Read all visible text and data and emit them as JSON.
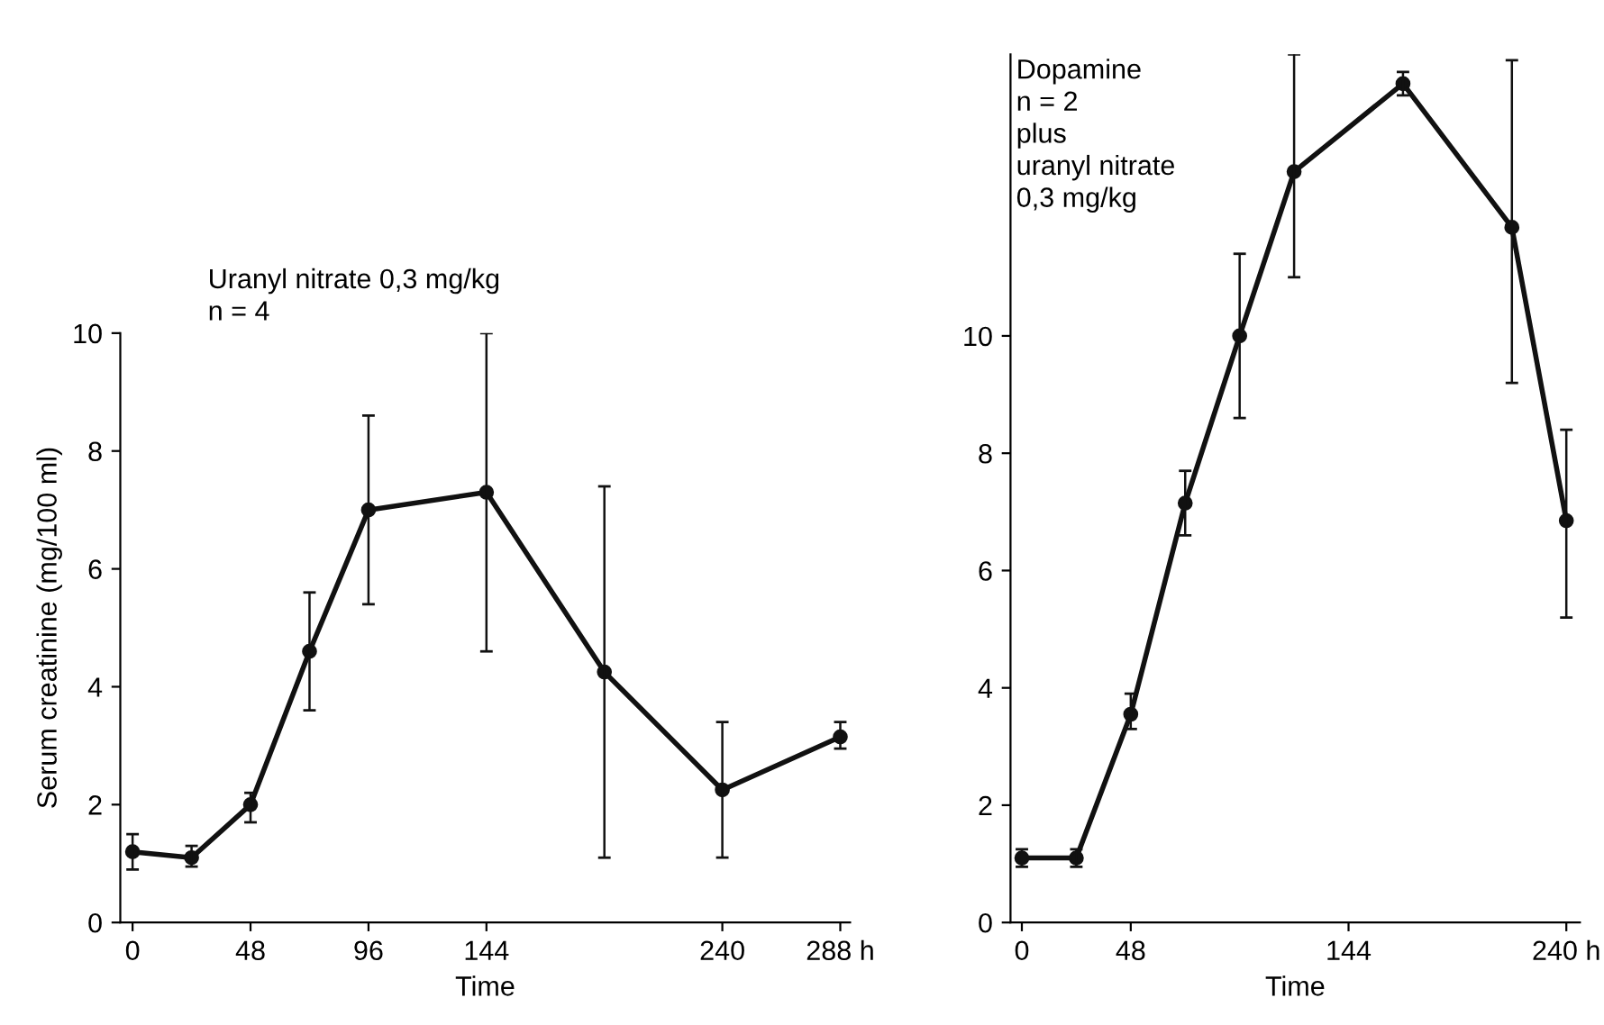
{
  "chart_data": [
    {
      "type": "line",
      "xlabel": "Time",
      "ylabel": "Serum creatinine (mg/100 ml)",
      "annotations": [
        "Uranyl nitrate 0,3 mg/kg",
        "n = 4"
      ],
      "x": [
        0,
        24,
        48,
        72,
        96,
        144,
        192,
        240,
        288
      ],
      "series": [
        {
          "color": "#111111",
          "values": [
            1.2,
            1.1,
            2.0,
            4.6,
            7.0,
            7.3,
            4.25,
            2.25,
            3.15
          ],
          "errors": [
            [
              0.9,
              1.5
            ],
            [
              0.95,
              1.3
            ],
            [
              1.7,
              2.2
            ],
            [
              3.6,
              5.6
            ],
            [
              5.4,
              8.6
            ],
            [
              4.6,
              10.0
            ],
            [
              1.1,
              7.4
            ],
            [
              1.1,
              3.4
            ],
            [
              2.95,
              3.4
            ]
          ]
        }
      ],
      "xlim": [
        -5,
        292
      ],
      "ylim": [
        0,
        10
      ],
      "xticks": [
        0,
        48,
        96,
        144,
        240,
        {
          "value": 288,
          "label": "288 h"
        }
      ],
      "yticks": [
        0,
        2,
        4,
        6,
        8,
        10
      ],
      "marker": "circle",
      "line_style": "solid",
      "grid": false,
      "legend": false
    },
    {
      "type": "line",
      "xlabel": "Time",
      "annotations": [
        "Dopamine",
        "n = 2",
        "plus",
        "uranyl nitrate",
        "0,3 mg/kg"
      ],
      "x": [
        0,
        24,
        48,
        72,
        96,
        120,
        168,
        216,
        240
      ],
      "series": [
        {
          "color": "#111111",
          "values": [
            1.1,
            1.1,
            3.55,
            7.15,
            10.0,
            12.8,
            14.3,
            11.85,
            6.85
          ],
          "errors": [
            [
              0.95,
              1.25
            ],
            [
              0.95,
              1.25
            ],
            [
              3.3,
              3.9
            ],
            [
              6.6,
              7.7
            ],
            [
              8.6,
              11.4
            ],
            [
              11.0,
              14.8
            ],
            [
              14.1,
              14.5
            ],
            [
              9.2,
              14.7
            ],
            [
              5.2,
              8.4
            ]
          ]
        }
      ],
      "xlim": [
        -5,
        246
      ],
      "ylim": [
        0,
        14.8
      ],
      "xticks": [
        0,
        48,
        144,
        {
          "value": 240,
          "label": "240 h"
        }
      ],
      "yticks": [
        0,
        2,
        4,
        6,
        8,
        10
      ],
      "marker": "circle",
      "line_style": "solid",
      "grid": false,
      "legend": false
    }
  ]
}
